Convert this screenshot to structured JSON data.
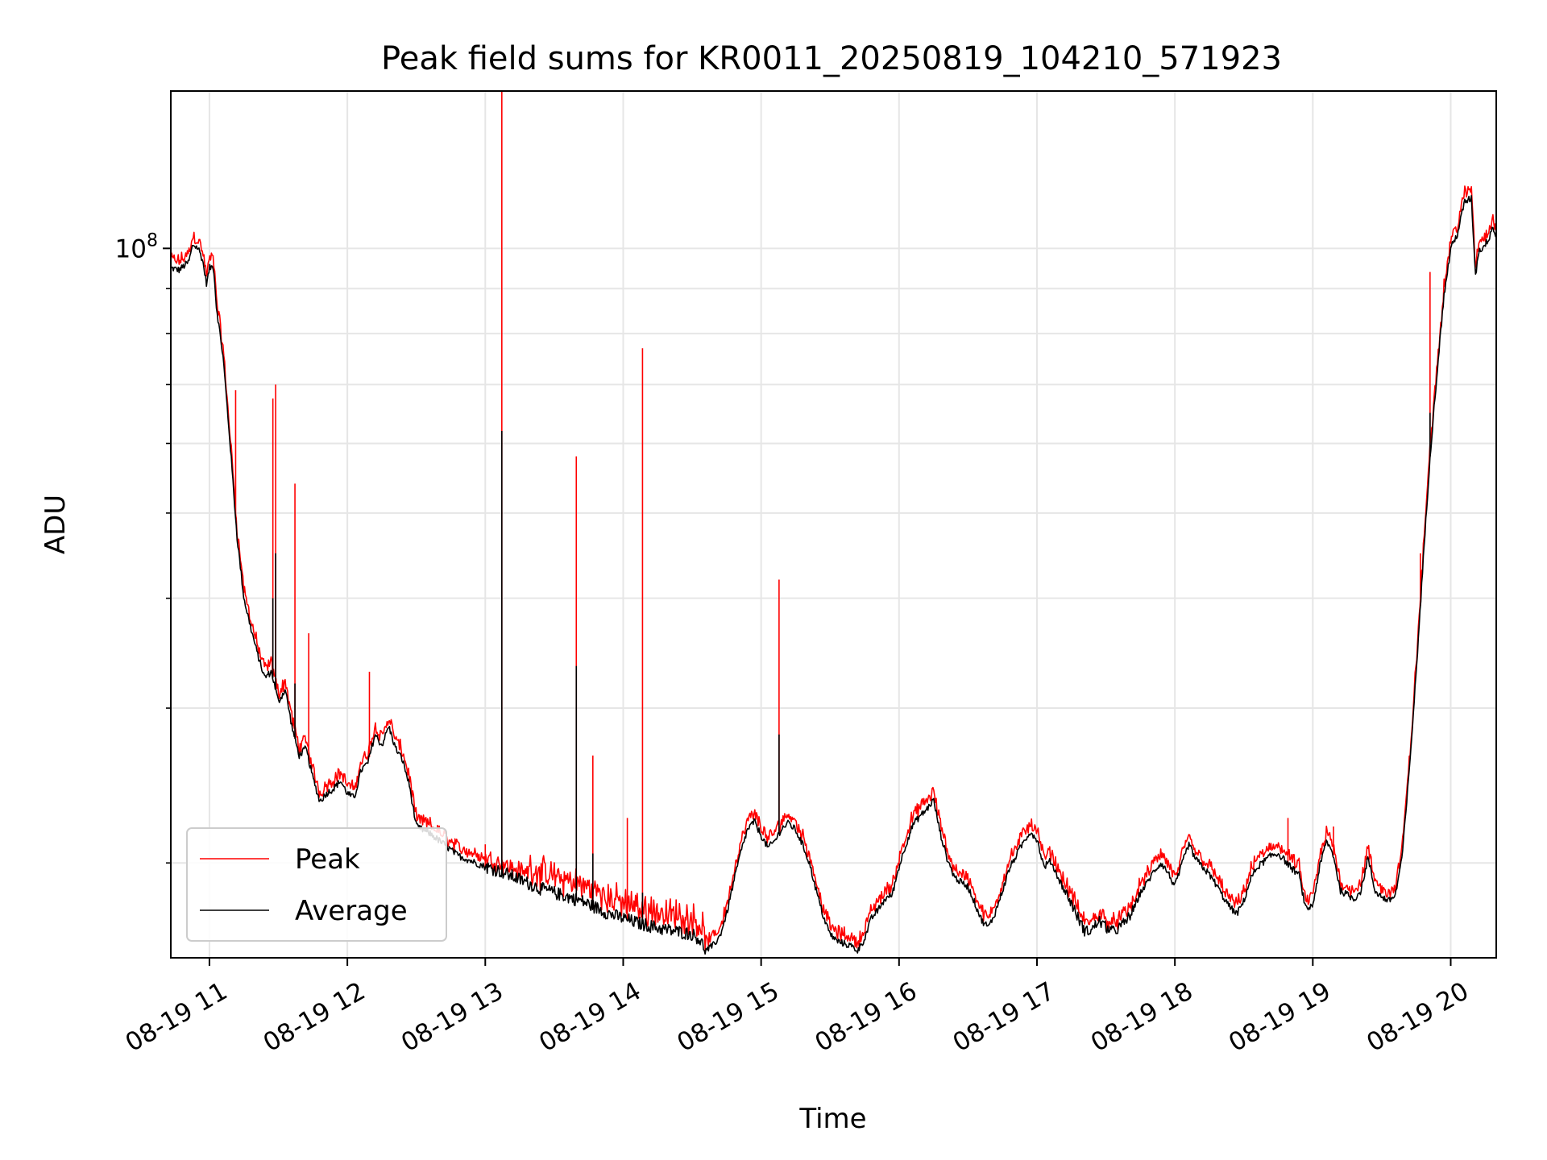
{
  "chart_data": {
    "type": "line",
    "title": "Peak field sums for KR0011_20250819_104210_571923",
    "xlabel": "Time",
    "ylabel": "ADU",
    "y_scale": "log",
    "x_range_hours": [
      10.72,
      20.33
    ],
    "ylim": [
      15600000,
      151000000
    ],
    "x_ticks": [
      {
        "value": 11,
        "label": "08-19 11"
      },
      {
        "value": 12,
        "label": "08-19 12"
      },
      {
        "value": 13,
        "label": "08-19 13"
      },
      {
        "value": 14,
        "label": "08-19 14"
      },
      {
        "value": 15,
        "label": "08-19 15"
      },
      {
        "value": 16,
        "label": "08-19 16"
      },
      {
        "value": 17,
        "label": "08-19 17"
      },
      {
        "value": 18,
        "label": "08-19 18"
      },
      {
        "value": 19,
        "label": "08-19 19"
      },
      {
        "value": 20,
        "label": "08-19 20"
      }
    ],
    "y_major_tick": {
      "value": 100000000,
      "label_base": "10",
      "label_exp": "8"
    },
    "y_minor_ticks": [
      20000000,
      30000000,
      40000000,
      50000000,
      60000000,
      70000000,
      80000000,
      90000000
    ],
    "grid": true,
    "legend_position": "lower-left",
    "series": [
      {
        "name": "Peak",
        "color": "#ff0000"
      },
      {
        "name": "Average",
        "color": "#000000"
      }
    ],
    "average_anchors": [
      [
        10.72,
        95000000
      ],
      [
        10.78,
        94500000
      ],
      [
        10.85,
        96500000
      ],
      [
        10.88,
        101000000
      ],
      [
        10.92,
        100000000
      ],
      [
        10.95,
        97000000
      ],
      [
        10.98,
        91000000
      ],
      [
        11.0,
        95000000
      ],
      [
        11.03,
        95500000
      ],
      [
        11.05,
        86000000
      ],
      [
        11.1,
        75000000
      ],
      [
        11.15,
        60000000
      ],
      [
        11.2,
        47000000
      ],
      [
        11.25,
        40000000
      ],
      [
        11.3,
        37000000
      ],
      [
        11.35,
        34500000
      ],
      [
        11.4,
        32500000
      ],
      [
        11.45,
        33000000
      ],
      [
        11.5,
        30500000
      ],
      [
        11.55,
        31500000
      ],
      [
        11.6,
        28500000
      ],
      [
        11.65,
        26500000
      ],
      [
        11.7,
        27000000
      ],
      [
        11.75,
        25000000
      ],
      [
        11.8,
        23500000
      ],
      [
        11.85,
        24000000
      ],
      [
        11.9,
        24300000
      ],
      [
        11.95,
        24800000
      ],
      [
        12.0,
        24000000
      ],
      [
        12.05,
        23700000
      ],
      [
        12.1,
        25500000
      ],
      [
        12.15,
        26000000
      ],
      [
        12.2,
        28000000
      ],
      [
        12.25,
        27200000
      ],
      [
        12.3,
        28600000
      ],
      [
        12.35,
        27000000
      ],
      [
        12.4,
        26200000
      ],
      [
        12.45,
        24500000
      ],
      [
        12.5,
        22000000
      ],
      [
        12.6,
        21600000
      ],
      [
        12.7,
        21000000
      ],
      [
        12.8,
        20400000
      ],
      [
        12.9,
        20100000
      ],
      [
        13.0,
        19800000
      ],
      [
        13.1,
        19600000
      ],
      [
        13.2,
        19300000
      ],
      [
        13.3,
        19000000
      ],
      [
        13.4,
        18700000
      ],
      [
        13.5,
        18500000
      ],
      [
        13.6,
        18300000
      ],
      [
        13.7,
        18100000
      ],
      [
        13.8,
        17800000
      ],
      [
        13.9,
        17500000
      ],
      [
        14.0,
        17300000
      ],
      [
        14.1,
        17100000
      ],
      [
        14.2,
        16950000
      ],
      [
        14.3,
        16800000
      ],
      [
        14.4,
        16700000
      ],
      [
        14.5,
        16600000
      ],
      [
        14.55,
        16400000
      ],
      [
        14.6,
        15900000
      ],
      [
        14.65,
        16100000
      ],
      [
        14.7,
        16500000
      ],
      [
        14.75,
        17500000
      ],
      [
        14.8,
        19000000
      ],
      [
        14.85,
        20500000
      ],
      [
        14.9,
        21800000
      ],
      [
        14.95,
        22300000
      ],
      [
        15.0,
        21500000
      ],
      [
        15.05,
        20800000
      ],
      [
        15.1,
        21200000
      ],
      [
        15.15,
        21900000
      ],
      [
        15.2,
        22200000
      ],
      [
        15.25,
        21800000
      ],
      [
        15.3,
        21000000
      ],
      [
        15.35,
        20000000
      ],
      [
        15.4,
        18600000
      ],
      [
        15.45,
        17400000
      ],
      [
        15.5,
        16600000
      ],
      [
        15.55,
        16300000
      ],
      [
        15.6,
        16200000
      ],
      [
        15.65,
        16100000
      ],
      [
        15.7,
        15900000
      ],
      [
        15.75,
        16400000
      ],
      [
        15.8,
        17300000
      ],
      [
        15.85,
        17700000
      ],
      [
        15.9,
        18200000
      ],
      [
        15.95,
        18400000
      ],
      [
        16.0,
        19800000
      ],
      [
        16.05,
        21000000
      ],
      [
        16.1,
        22100000
      ],
      [
        16.15,
        22600000
      ],
      [
        16.2,
        23000000
      ],
      [
        16.25,
        23600000
      ],
      [
        16.3,
        21600000
      ],
      [
        16.35,
        20200000
      ],
      [
        16.4,
        19300000
      ],
      [
        16.45,
        19000000
      ],
      [
        16.5,
        18800000
      ],
      [
        16.55,
        18000000
      ],
      [
        16.6,
        17200000
      ],
      [
        16.65,
        16900000
      ],
      [
        16.7,
        17600000
      ],
      [
        16.75,
        18600000
      ],
      [
        16.8,
        19700000
      ],
      [
        16.85,
        20400000
      ],
      [
        16.9,
        21100000
      ],
      [
        16.95,
        21700000
      ],
      [
        17.0,
        21300000
      ],
      [
        17.05,
        19800000
      ],
      [
        17.1,
        20100000
      ],
      [
        17.15,
        19300000
      ],
      [
        17.2,
        18600000
      ],
      [
        17.25,
        18000000
      ],
      [
        17.3,
        17300000
      ],
      [
        17.35,
        16700000
      ],
      [
        17.4,
        16800000
      ],
      [
        17.45,
        17200000
      ],
      [
        17.5,
        16900000
      ],
      [
        17.55,
        16700000
      ],
      [
        17.6,
        16900000
      ],
      [
        17.65,
        17200000
      ],
      [
        17.7,
        17700000
      ],
      [
        17.75,
        18500000
      ],
      [
        17.8,
        19000000
      ],
      [
        17.85,
        19600000
      ],
      [
        17.9,
        20000000
      ],
      [
        17.95,
        19500000
      ],
      [
        18.0,
        18800000
      ],
      [
        18.05,
        19900000
      ],
      [
        18.1,
        21000000
      ],
      [
        18.15,
        20200000
      ],
      [
        18.2,
        19800000
      ],
      [
        18.25,
        19400000
      ],
      [
        18.3,
        18900000
      ],
      [
        18.35,
        18300000
      ],
      [
        18.4,
        17800000
      ],
      [
        18.45,
        17500000
      ],
      [
        18.5,
        18100000
      ],
      [
        18.55,
        19200000
      ],
      [
        18.6,
        19800000
      ],
      [
        18.65,
        20100000
      ],
      [
        18.7,
        20400000
      ],
      [
        18.75,
        20500000
      ],
      [
        18.8,
        20100000
      ],
      [
        18.85,
        19700000
      ],
      [
        18.9,
        19400000
      ],
      [
        18.95,
        17700000
      ],
      [
        19.0,
        17900000
      ],
      [
        19.05,
        19800000
      ],
      [
        19.1,
        21200000
      ],
      [
        19.15,
        20400000
      ],
      [
        19.2,
        18600000
      ],
      [
        19.25,
        18400000
      ],
      [
        19.3,
        18200000
      ],
      [
        19.35,
        18600000
      ],
      [
        19.4,
        20300000
      ],
      [
        19.45,
        18600000
      ],
      [
        19.5,
        18300000
      ],
      [
        19.55,
        18100000
      ],
      [
        19.6,
        18400000
      ],
      [
        19.65,
        20500000
      ],
      [
        19.7,
        25500000
      ],
      [
        19.75,
        33000000
      ],
      [
        19.8,
        44000000
      ],
      [
        19.85,
        58000000
      ],
      [
        19.9,
        72000000
      ],
      [
        19.95,
        88000000
      ],
      [
        20.0,
        100000000
      ],
      [
        20.05,
        104000000
      ],
      [
        20.1,
        113000000
      ],
      [
        20.15,
        114000000
      ],
      [
        20.18,
        93000000
      ],
      [
        20.2,
        99000000
      ],
      [
        20.25,
        101000000
      ],
      [
        20.28,
        103000000
      ],
      [
        20.3,
        106000000
      ],
      [
        20.33,
        103000000
      ]
    ],
    "peak_spikes": [
      [
        11.19,
        69000000
      ],
      [
        11.46,
        67500000
      ],
      [
        11.48,
        70000000
      ],
      [
        11.62,
        54000000
      ],
      [
        11.72,
        36500000
      ],
      [
        12.16,
        33000000
      ],
      [
        13.0,
        21000000
      ],
      [
        13.12,
        151000000
      ],
      [
        13.2,
        19500000
      ],
      [
        13.66,
        58000000
      ],
      [
        13.78,
        26500000
      ],
      [
        14.03,
        22500000
      ],
      [
        14.14,
        77000000
      ],
      [
        15.13,
        42000000
      ],
      [
        18.82,
        22500000
      ],
      [
        19.15,
        22000000
      ],
      [
        19.78,
        45000000
      ],
      [
        19.85,
        94000000
      ]
    ],
    "average_spikes": [
      [
        11.46,
        40000000
      ],
      [
        11.48,
        45000000
      ],
      [
        11.62,
        32000000
      ],
      [
        13.12,
        62000000
      ],
      [
        13.66,
        33500000
      ],
      [
        13.78,
        20500000
      ],
      [
        14.14,
        18500000
      ],
      [
        15.13,
        28000000
      ],
      [
        19.85,
        65000000
      ]
    ]
  }
}
